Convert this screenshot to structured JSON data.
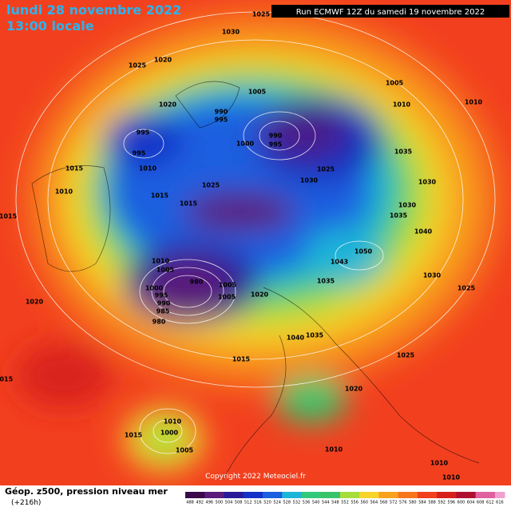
{
  "header": {
    "date": "lundi 28 novembre 2022",
    "time": "13:00 locale",
    "run": "Run ECMWF 12Z du samedi 19 novembre 2022"
  },
  "footer": {
    "title": "Géop. z500, pression niveau mer",
    "lead": "(+216h)",
    "copyright": "Copyright 2022 Meteociel.fr",
    "scale": [
      488,
      492,
      496,
      500,
      504,
      508,
      512,
      516,
      520,
      524,
      528,
      532,
      536,
      540,
      544,
      548,
      552,
      556,
      560,
      564,
      568,
      572,
      576,
      580,
      584,
      588,
      592,
      596,
      600,
      604,
      608,
      612,
      616
    ]
  },
  "isobar_labels": [
    "1025",
    "1030",
    "1025",
    "1020",
    "1005",
    "1005",
    "1010",
    "1010",
    "1020",
    "990",
    "995",
    "995",
    "995",
    "1010",
    "1000",
    "990",
    "995",
    "1035",
    "1025",
    "1030",
    "1030",
    "1015",
    "1010",
    "1025",
    "1015",
    "1015",
    "1015",
    "1030",
    "1035",
    "1040",
    "1050",
    "1010",
    "1005",
    "1043",
    "1035",
    "1030",
    "1025",
    "980",
    "1005",
    "1005",
    "1020",
    "1000",
    "995",
    "990",
    "985",
    "980",
    "1020",
    "1040",
    "1035",
    "1025",
    "1015",
    "1015",
    "1020",
    "1010",
    "1000",
    "1015",
    "1005",
    "1010",
    "1010",
    "1010"
  ]
}
